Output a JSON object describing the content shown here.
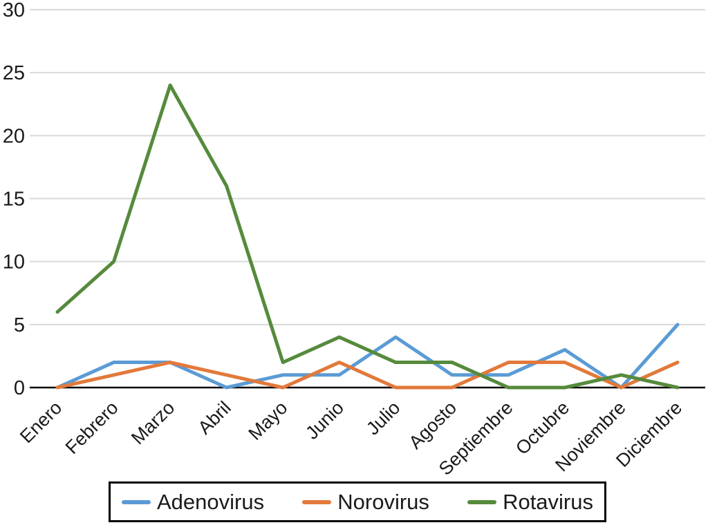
{
  "chart_data": {
    "type": "line",
    "title": "",
    "xlabel": "",
    "ylabel": "",
    "categories": [
      "Enero",
      "Febrero",
      "Marzo",
      "Abril",
      "Mayo",
      "Junio",
      "Julio",
      "Agosto",
      "Septiembre",
      "Octubre",
      "Noviembre",
      "Diciembre"
    ],
    "series": [
      {
        "name": "Adenovirus",
        "color": "#5B9BD5",
        "values": [
          0,
          2,
          2,
          0,
          1,
          1,
          4,
          1,
          1,
          3,
          0,
          5
        ]
      },
      {
        "name": "Norovirus",
        "color": "#E2793B",
        "values": [
          0,
          1,
          2,
          1,
          0,
          2,
          0,
          0,
          2,
          2,
          0,
          2
        ]
      },
      {
        "name": "Rotavirus",
        "color": "#568A3C",
        "values": [
          6,
          10,
          24,
          16,
          2,
          4,
          2,
          2,
          0,
          0,
          1,
          0
        ]
      }
    ],
    "ylim": [
      0,
      30
    ],
    "y_ticks": [
      0,
      5,
      10,
      15,
      20,
      25,
      30
    ],
    "grid": "horizontal",
    "legend_position": "bottom"
  },
  "colors": {
    "grid": "#D9D9D9",
    "axis": "#000000",
    "text": "#1A1A1A",
    "background": "#FFFFFF",
    "legend_border": "#000000"
  }
}
